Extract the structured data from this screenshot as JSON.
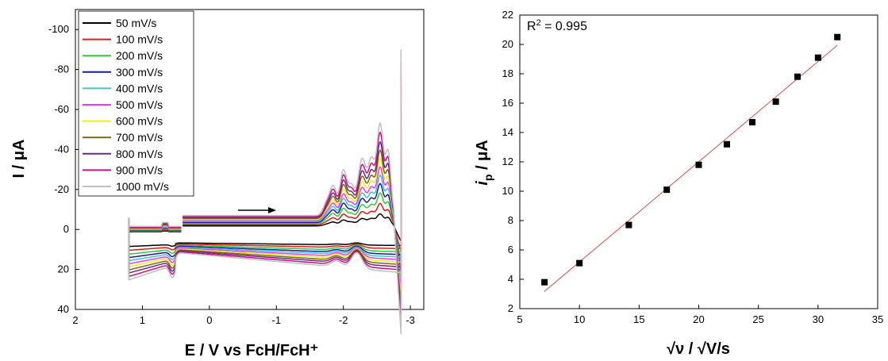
{
  "chart_data": [
    {
      "type": "line",
      "subtype": "cyclic-voltammogram",
      "xlabel": "E / V vs FcH/FcH⁺",
      "ylabel": "I / μA",
      "xlim": [
        2,
        -3.2
      ],
      "ylim": [
        -110,
        40
      ],
      "x_reversed": true,
      "y_reversed": true,
      "x_ticks": [
        "2",
        "1",
        "0",
        "-1",
        "-2",
        "-3"
      ],
      "y_ticks": [
        "-100",
        "-80",
        "-60",
        "-40",
        "-20",
        "0",
        "20",
        "40"
      ],
      "grid": false,
      "legend_position": "top-left",
      "scan_direction_arrow": "forward scan toward negative potential",
      "series": [
        {
          "name": "50 mV/s",
          "color": "#000000",
          "scale": 0.13
        },
        {
          "name": "100 mV/s",
          "color": "#e31a1c",
          "scale": 0.23
        },
        {
          "name": "200 mV/s",
          "color": "#33cc33",
          "scale": 0.33
        },
        {
          "name": "300 mV/s",
          "color": "#1a1aa6",
          "scale": 0.42
        },
        {
          "name": "400 mV/s",
          "color": "#33cccc",
          "scale": 0.5
        },
        {
          "name": "500 mV/s",
          "color": "#ff33ff",
          "scale": 0.58
        },
        {
          "name": "600 mV/s",
          "color": "#eeee22",
          "scale": 0.66
        },
        {
          "name": "700 mV/s",
          "color": "#7a6a10",
          "scale": 0.74
        },
        {
          "name": "800 mV/s",
          "color": "#6b2a8a",
          "scale": 0.82
        },
        {
          "name": "900 mV/s",
          "color": "#cc1188",
          "scale": 0.91
        },
        {
          "name": "1000 mV/s",
          "color": "#c0c0c0",
          "scale": 1.0
        }
      ]
    },
    {
      "type": "scatter",
      "with_fit": true,
      "xlabel": "√ν / √V/s",
      "ylabel_main": "i",
      "ylabel_sub": "p",
      "ylabel_rest": " / μA",
      "xlim": [
        5,
        35
      ],
      "ylim": [
        2,
        22
      ],
      "x_ticks": [
        5,
        10,
        15,
        20,
        25,
        30,
        35
      ],
      "y_ticks": [
        2,
        4,
        6,
        8,
        10,
        12,
        14,
        16,
        18,
        20,
        22
      ],
      "annotation_main": "R",
      "annotation_sup": "2",
      "annotation_rest": " = 0.995",
      "points": [
        {
          "x": 7.07,
          "y": 3.8
        },
        {
          "x": 10.0,
          "y": 5.1
        },
        {
          "x": 14.14,
          "y": 7.7
        },
        {
          "x": 17.32,
          "y": 10.1
        },
        {
          "x": 20.0,
          "y": 11.8
        },
        {
          "x": 22.36,
          "y": 13.2
        },
        {
          "x": 24.49,
          "y": 14.7
        },
        {
          "x": 26.46,
          "y": 16.1
        },
        {
          "x": 28.28,
          "y": 17.8
        },
        {
          "x": 30.0,
          "y": 19.1
        },
        {
          "x": 31.62,
          "y": 20.5
        }
      ],
      "fit_line": {
        "slope": 0.683,
        "intercept": -1.65,
        "x_range": [
          7.07,
          31.62
        ]
      },
      "fit_color": "#e05050",
      "marker_color": "#000000"
    }
  ]
}
